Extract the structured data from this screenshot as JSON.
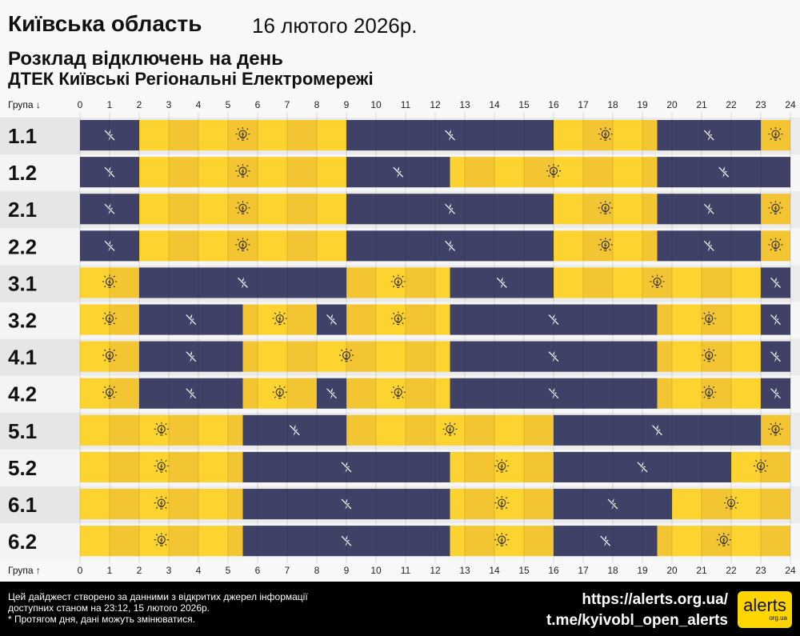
{
  "header": {
    "region": "Київська область",
    "date": "16 лютого 2026р.",
    "subtitle": "Розклад відключень на день",
    "company": "ДТЕК Київські Регіональні Електромережі"
  },
  "chart_data": {
    "type": "timeline",
    "x_ticks": [
      "0",
      "1",
      "2",
      "3",
      "4",
      "5",
      "6",
      "7",
      "8",
      "9",
      "10",
      "11",
      "12",
      "13",
      "14",
      "15",
      "16",
      "17",
      "18",
      "19",
      "20",
      "21",
      "22",
      "23",
      "24"
    ],
    "xlim": [
      0,
      24
    ],
    "top_axis_label": "Група ↓",
    "bottom_axis_label": "Група ↑",
    "colors": {
      "on": "#fdd330",
      "on_alt": "#f4c532",
      "off": "#3f4266",
      "row_bg": "#ebebeb",
      "row_bg_alt": "#f6f6f6"
    },
    "legend": {
      "off": "power-off-icon",
      "on": "lightbulb-icon"
    },
    "groups": [
      {
        "name": "1.1",
        "segments": [
          [
            0,
            2,
            "off"
          ],
          [
            2,
            9,
            "on"
          ],
          [
            9,
            16,
            "off"
          ],
          [
            16,
            19.5,
            "on"
          ],
          [
            19.5,
            23,
            "off"
          ],
          [
            23,
            24,
            "on"
          ]
        ]
      },
      {
        "name": "1.2",
        "segments": [
          [
            0,
            2,
            "off"
          ],
          [
            2,
            9,
            "on"
          ],
          [
            9,
            12.5,
            "off"
          ],
          [
            12.5,
            19.5,
            "on"
          ],
          [
            19.5,
            24,
            "off"
          ]
        ]
      },
      {
        "name": "2.1",
        "segments": [
          [
            0,
            2,
            "off"
          ],
          [
            2,
            9,
            "on"
          ],
          [
            9,
            16,
            "off"
          ],
          [
            16,
            19.5,
            "on"
          ],
          [
            19.5,
            23,
            "off"
          ],
          [
            23,
            24,
            "on"
          ]
        ]
      },
      {
        "name": "2.2",
        "segments": [
          [
            0,
            2,
            "off"
          ],
          [
            2,
            9,
            "on"
          ],
          [
            9,
            16,
            "off"
          ],
          [
            16,
            19.5,
            "on"
          ],
          [
            19.5,
            23,
            "off"
          ],
          [
            23,
            24,
            "on"
          ]
        ]
      },
      {
        "name": "3.1",
        "segments": [
          [
            0,
            2,
            "on"
          ],
          [
            2,
            9,
            "off"
          ],
          [
            9,
            12.5,
            "on"
          ],
          [
            12.5,
            16,
            "off"
          ],
          [
            16,
            23,
            "on"
          ],
          [
            23,
            24,
            "off"
          ]
        ]
      },
      {
        "name": "3.2",
        "segments": [
          [
            0,
            2,
            "on"
          ],
          [
            2,
            5.5,
            "off"
          ],
          [
            5.5,
            8,
            "on"
          ],
          [
            8,
            9,
            "off"
          ],
          [
            9,
            12.5,
            "on"
          ],
          [
            12.5,
            19.5,
            "off"
          ],
          [
            19.5,
            23,
            "on"
          ],
          [
            23,
            24,
            "off"
          ]
        ]
      },
      {
        "name": "4.1",
        "segments": [
          [
            0,
            2,
            "on"
          ],
          [
            2,
            5.5,
            "off"
          ],
          [
            5.5,
            12.5,
            "on"
          ],
          [
            12.5,
            19.5,
            "off"
          ],
          [
            19.5,
            23,
            "on"
          ],
          [
            23,
            24,
            "off"
          ]
        ]
      },
      {
        "name": "4.2",
        "segments": [
          [
            0,
            2,
            "on"
          ],
          [
            2,
            5.5,
            "off"
          ],
          [
            5.5,
            8,
            "on"
          ],
          [
            8,
            9,
            "off"
          ],
          [
            9,
            12.5,
            "on"
          ],
          [
            12.5,
            19.5,
            "off"
          ],
          [
            19.5,
            23,
            "on"
          ],
          [
            23,
            24,
            "off"
          ]
        ]
      },
      {
        "name": "5.1",
        "segments": [
          [
            0,
            5.5,
            "on"
          ],
          [
            5.5,
            9,
            "off"
          ],
          [
            9,
            16,
            "on"
          ],
          [
            16,
            23,
            "off"
          ],
          [
            23,
            24,
            "on"
          ]
        ]
      },
      {
        "name": "5.2",
        "segments": [
          [
            0,
            5.5,
            "on"
          ],
          [
            5.5,
            12.5,
            "off"
          ],
          [
            12.5,
            16,
            "on"
          ],
          [
            16,
            22,
            "off"
          ],
          [
            22,
            24,
            "on"
          ]
        ]
      },
      {
        "name": "6.1",
        "segments": [
          [
            0,
            5.5,
            "on"
          ],
          [
            5.5,
            12.5,
            "off"
          ],
          [
            12.5,
            16,
            "on"
          ],
          [
            16,
            20,
            "off"
          ],
          [
            20,
            24,
            "on"
          ]
        ]
      },
      {
        "name": "6.2",
        "segments": [
          [
            0,
            5.5,
            "on"
          ],
          [
            5.5,
            12.5,
            "off"
          ],
          [
            12.5,
            16,
            "on"
          ],
          [
            16,
            19.5,
            "off"
          ],
          [
            19.5,
            24,
            "on"
          ]
        ]
      }
    ]
  },
  "footer": {
    "note_line1": "Цей дайджест створено за данними з відкритих джерел інформації",
    "note_line2": "доступних станом на 23:12, 15 лютого 2026р.",
    "note_line3": "* Протягом дня, дані можуть змінюватися.",
    "link_site": "https://alerts.org.ua/",
    "link_telegram": "t.me/kyivobl_open_alerts",
    "logo_text": "alerts",
    "logo_sub": "org.ua"
  }
}
